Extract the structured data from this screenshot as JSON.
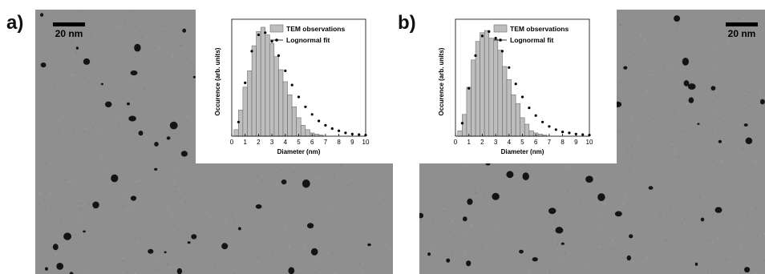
{
  "figure": {
    "panels": [
      {
        "label": "a)",
        "scale_bar": "20 nm"
      },
      {
        "label": "b)",
        "scale_bar": "20 nm"
      }
    ]
  },
  "colors": {
    "background_tem": "#8f8f8f",
    "bars": "#bdbdbd",
    "bar_stroke": "#6e6e6e",
    "fit": "#000000",
    "particles": "#141414"
  },
  "chart_data": [
    {
      "type": "bar",
      "panel": "a)",
      "xlabel": "Diameter (nm)",
      "ylabel": "Occurence (arb. units)",
      "xlim": [
        0,
        10
      ],
      "xticks": [
        0,
        1,
        2,
        3,
        4,
        5,
        6,
        7,
        8,
        9,
        10
      ],
      "legend_position": "top-right",
      "bin_width": 0.33,
      "bins": [
        0.33,
        0.67,
        1.0,
        1.33,
        1.67,
        2.0,
        2.33,
        2.67,
        3.0,
        3.33,
        3.67,
        4.0,
        4.33,
        4.67,
        5.0,
        5.33,
        5.67,
        6.0,
        6.33,
        6.67
      ],
      "series": [
        {
          "name": "TEM observations",
          "kind": "bar",
          "values": [
            0.06,
            0.24,
            0.45,
            0.6,
            0.83,
            0.96,
            1.0,
            0.93,
            0.85,
            0.73,
            0.61,
            0.5,
            0.38,
            0.27,
            0.17,
            0.1,
            0.06,
            0.03,
            0.02,
            0.01
          ]
        },
        {
          "name": "Lognormal fit",
          "kind": "line",
          "x": [
            0.5,
            1.0,
            1.5,
            2.0,
            2.5,
            3.0,
            3.5,
            4.0,
            4.5,
            5.0,
            5.5,
            6.0,
            6.5,
            7.0,
            7.5,
            8.0,
            8.5,
            9.0,
            9.5,
            10.0
          ],
          "values": [
            0.13,
            0.49,
            0.78,
            0.93,
            0.95,
            0.87,
            0.74,
            0.6,
            0.47,
            0.36,
            0.27,
            0.2,
            0.14,
            0.1,
            0.07,
            0.05,
            0.03,
            0.02,
            0.015,
            0.01
          ]
        }
      ]
    },
    {
      "type": "bar",
      "panel": "b)",
      "xlabel": "Diameter (nm)",
      "ylabel": "Occurence (arb. units)",
      "xlim": [
        0,
        10
      ],
      "xticks": [
        0,
        1,
        2,
        3,
        4,
        5,
        6,
        7,
        8,
        9,
        10
      ],
      "legend_position": "top-right",
      "bin_width": 0.33,
      "bins": [
        0.33,
        0.67,
        1.0,
        1.33,
        1.67,
        2.0,
        2.33,
        2.67,
        3.0,
        3.33,
        3.67,
        4.0,
        4.33,
        4.67,
        5.0,
        5.33,
        5.67,
        6.0,
        6.33,
        6.67
      ],
      "series": [
        {
          "name": "TEM observations",
          "kind": "bar",
          "values": [
            0.05,
            0.2,
            0.45,
            0.7,
            0.87,
            0.95,
            0.97,
            0.9,
            0.89,
            0.79,
            0.64,
            0.52,
            0.38,
            0.3,
            0.17,
            0.11,
            0.05,
            0.03,
            0.02,
            0.01
          ]
        },
        {
          "name": "Lognormal fit",
          "kind": "line",
          "x": [
            0.5,
            1.0,
            1.5,
            2.0,
            2.5,
            3.0,
            3.5,
            4.0,
            4.5,
            5.0,
            5.5,
            6.0,
            6.5,
            7.0,
            7.5,
            8.0,
            8.5,
            9.0,
            9.5,
            10.0
          ],
          "values": [
            0.12,
            0.44,
            0.74,
            0.92,
            0.96,
            0.9,
            0.78,
            0.63,
            0.48,
            0.36,
            0.26,
            0.19,
            0.13,
            0.09,
            0.06,
            0.04,
            0.03,
            0.02,
            0.015,
            0.01
          ]
        }
      ]
    }
  ]
}
